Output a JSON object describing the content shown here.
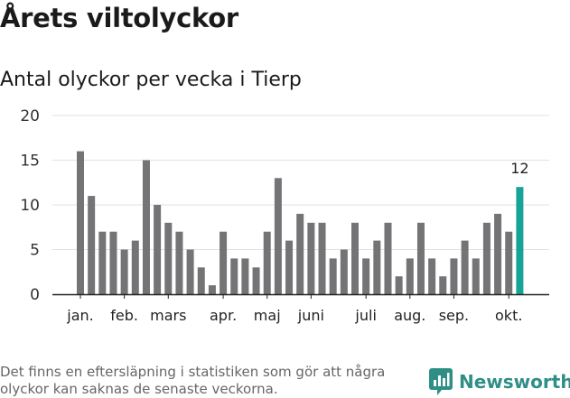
{
  "title": "Årets viltolyckor",
  "subtitle": "Antal olyckor per vecka i Tierp",
  "footnote": "Det finns en eftersläpning i statistiken som gör att några olyckor kan saknas de senaste veckorna.",
  "brand": {
    "name": "Newsworthy",
    "icon": "newsworthy-logo-icon",
    "color": "#2f8f86"
  },
  "colors": {
    "bar": "#747376",
    "highlight": "#17a398",
    "grid": "#e2e2e2",
    "axis": "#222222"
  },
  "chart_data": {
    "type": "bar",
    "title": "Antal olyckor per vecka i Tierp",
    "xlabel": "",
    "ylabel": "",
    "ylim": [
      0,
      20
    ],
    "yticks": [
      0,
      5,
      10,
      15,
      20
    ],
    "grid": true,
    "x": [
      1,
      2,
      3,
      4,
      5,
      6,
      7,
      8,
      9,
      10,
      11,
      12,
      13,
      14,
      15,
      16,
      17,
      18,
      19,
      20,
      21,
      22,
      23,
      24,
      25,
      26,
      27,
      28,
      29,
      30,
      31,
      32,
      33,
      34,
      35,
      36,
      37,
      38,
      39,
      40,
      41
    ],
    "values": [
      16,
      11,
      7,
      7,
      5,
      6,
      15,
      10,
      8,
      7,
      5,
      3,
      1,
      7,
      4,
      4,
      3,
      7,
      13,
      6,
      9,
      8,
      8,
      4,
      5,
      8,
      4,
      6,
      8,
      2,
      4,
      8,
      4,
      2,
      4,
      6,
      4,
      8,
      9,
      7,
      12
    ],
    "highlight": {
      "index": 40,
      "label": "12"
    },
    "month_labels": [
      {
        "label": "jan.",
        "at": 1
      },
      {
        "label": "feb.",
        "at": 5
      },
      {
        "label": "mars",
        "at": 9
      },
      {
        "label": "apr.",
        "at": 14
      },
      {
        "label": "maj",
        "at": 18
      },
      {
        "label": "juni",
        "at": 22
      },
      {
        "label": "juli",
        "at": 27
      },
      {
        "label": "aug.",
        "at": 31
      },
      {
        "label": "sep.",
        "at": 35
      },
      {
        "label": "okt.",
        "at": 40
      }
    ]
  }
}
